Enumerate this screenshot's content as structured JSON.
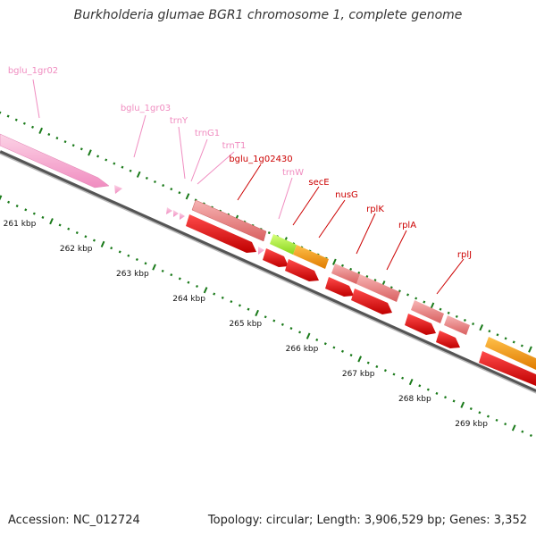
{
  "title": "Burkholderia glumae BGR1 chromosome 1, complete genome",
  "footer": {
    "accession": "Accession: NC_012724",
    "summary": "Topology: circular; Length: 3,906,529 bp; Genes: 3,352"
  },
  "colors": {
    "backbone": "#777777",
    "tick": "#1a7a1a",
    "rna": "#f4a6c8",
    "rna_label": "#f08cc0",
    "gene": "#e8888a",
    "cds": "#e8141c",
    "cds_label": "#cc0000",
    "orange_feature": "#f49a1a",
    "green_feature": "#a6ee3a"
  },
  "kbp_labels": [
    "261 kbp",
    "262 kbp",
    "263 kbp",
    "264 kbp",
    "265 kbp",
    "266 kbp",
    "267 kbp",
    "268 kbp",
    "269 kbp"
  ],
  "gene_labels": [
    {
      "text": "bglu_1gr02",
      "kind": "rna"
    },
    {
      "text": "bglu_1gr03",
      "kind": "rna"
    },
    {
      "text": "trnY",
      "kind": "rna"
    },
    {
      "text": "trnG1",
      "kind": "rna"
    },
    {
      "text": "trnT1",
      "kind": "rna"
    },
    {
      "text": "bglu_1g02430",
      "kind": "cds"
    },
    {
      "text": "trnW",
      "kind": "rna"
    },
    {
      "text": "secE",
      "kind": "cds"
    },
    {
      "text": "nusG",
      "kind": "cds"
    },
    {
      "text": "rplK",
      "kind": "cds"
    },
    {
      "text": "rplA",
      "kind": "cds"
    },
    {
      "text": "rplJ",
      "kind": "cds"
    }
  ]
}
